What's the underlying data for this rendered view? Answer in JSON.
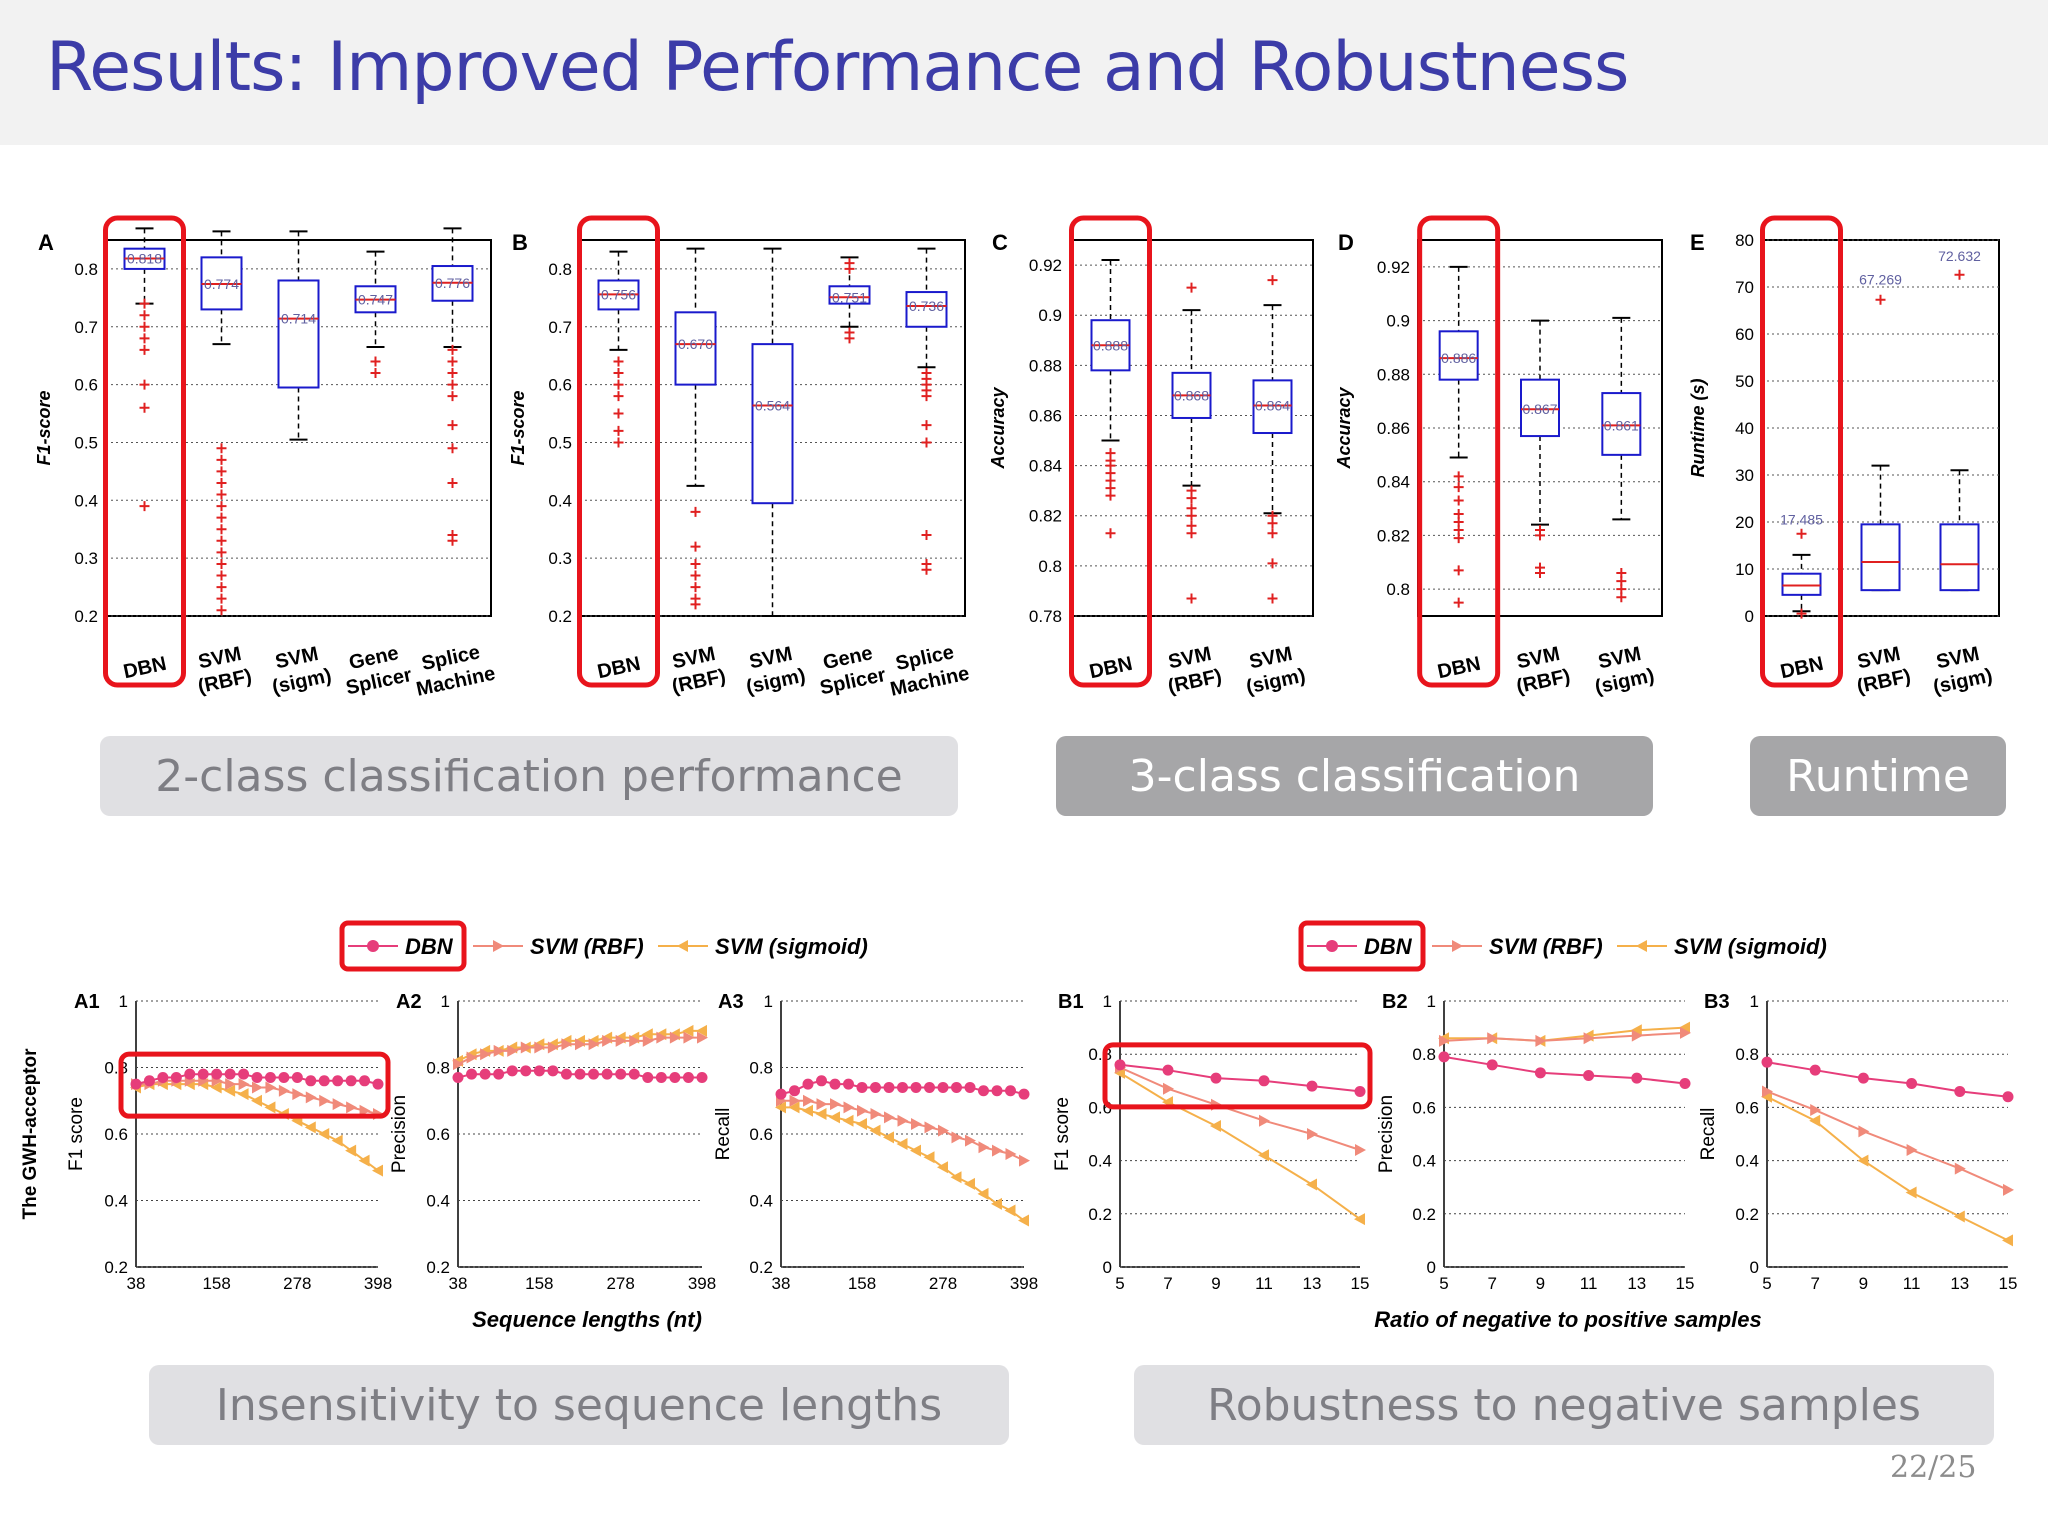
{
  "slide": {
    "title": "Results: Improved Performance and Robustness",
    "page_number": "22/25",
    "captions": {
      "two_class": "2-class classification performance",
      "three_class": "3-class classification",
      "runtime": "Runtime",
      "seq_len": "Insensitivity to sequence lengths",
      "neg_samples": "Robustness to negative samples"
    }
  },
  "colors": {
    "box": "#1a1acc",
    "outlier": "#e02020",
    "highlight": "#e8141c",
    "dbn": "#e63d7a",
    "svm_rbf": "#f08a7a",
    "svm_sigmoid": "#f5b04a"
  },
  "chart_data": [
    {
      "id": "A",
      "type": "box",
      "panel_label": "A",
      "ylabel": "F1-score",
      "ylim": [
        0.2,
        0.85
      ],
      "yticks": [
        "0.2",
        "0.3",
        "0.4",
        "0.5",
        "0.6",
        "0.7",
        "0.8"
      ],
      "categories": [
        "DBN",
        "SVM (RBF)",
        "SVM (sigm)",
        "Gene Splicer",
        "Splice Machine"
      ],
      "boxes": [
        {
          "median": 0.818,
          "q1": 0.8,
          "q3": 0.835,
          "whisker_low": 0.74,
          "whisker_high": 0.87,
          "label": "0.818",
          "outliers": [
            0.74,
            0.72,
            0.7,
            0.68,
            0.66,
            0.6,
            0.56,
            0.39
          ]
        },
        {
          "median": 0.774,
          "q1": 0.73,
          "q3": 0.82,
          "whisker_low": 0.67,
          "whisker_high": 0.865,
          "label": "0.774",
          "outliers": [
            0.49,
            0.47,
            0.45,
            0.43,
            0.41,
            0.39,
            0.37,
            0.35,
            0.33,
            0.31,
            0.29,
            0.27,
            0.25,
            0.23,
            0.21
          ]
        },
        {
          "median": 0.714,
          "q1": 0.595,
          "q3": 0.78,
          "whisker_low": 0.505,
          "whisker_high": 0.865,
          "label": "0.714",
          "outliers": []
        },
        {
          "median": 0.747,
          "q1": 0.725,
          "q3": 0.77,
          "whisker_low": 0.665,
          "whisker_high": 0.83,
          "label": "0.747",
          "outliers": [
            0.64,
            0.62
          ]
        },
        {
          "median": 0.776,
          "q1": 0.745,
          "q3": 0.805,
          "whisker_low": 0.665,
          "whisker_high": 0.87,
          "label": "0.776",
          "outliers": [
            0.66,
            0.64,
            0.62,
            0.6,
            0.58,
            0.53,
            0.49,
            0.43,
            0.34,
            0.33
          ]
        }
      ],
      "highlight": "DBN"
    },
    {
      "id": "B",
      "type": "box",
      "panel_label": "B",
      "ylabel": "F1-score",
      "ylim": [
        0.2,
        0.85
      ],
      "yticks": [
        "0.2",
        "0.3",
        "0.4",
        "0.5",
        "0.6",
        "0.7",
        "0.8"
      ],
      "categories": [
        "DBN",
        "SVM (RBF)",
        "SVM (sigm)",
        "Gene Splicer",
        "Splice Machine"
      ],
      "boxes": [
        {
          "median": 0.756,
          "q1": 0.73,
          "q3": 0.78,
          "whisker_low": 0.66,
          "whisker_high": 0.83,
          "label": "0.756",
          "outliers": [
            0.64,
            0.62,
            0.6,
            0.58,
            0.55,
            0.52,
            0.5
          ]
        },
        {
          "median": 0.67,
          "q1": 0.6,
          "q3": 0.725,
          "whisker_low": 0.425,
          "whisker_high": 0.835,
          "label": "0.670",
          "outliers": [
            0.38,
            0.32,
            0.29,
            0.27,
            0.25,
            0.23,
            0.22
          ]
        },
        {
          "median": 0.564,
          "q1": 0.395,
          "q3": 0.67,
          "whisker_low": 0.2,
          "whisker_high": 0.835,
          "label": "0.564",
          "outliers": []
        },
        {
          "median": 0.751,
          "q1": 0.74,
          "q3": 0.77,
          "whisker_low": 0.7,
          "whisker_high": 0.82,
          "label": "0.751",
          "outliers": [
            0.69,
            0.68,
            0.81,
            0.8
          ]
        },
        {
          "median": 0.736,
          "q1": 0.7,
          "q3": 0.76,
          "whisker_low": 0.63,
          "whisker_high": 0.835,
          "label": "0.736",
          "outliers": [
            0.62,
            0.61,
            0.6,
            0.59,
            0.58,
            0.53,
            0.5,
            0.34,
            0.29,
            0.28
          ]
        }
      ],
      "highlight": "DBN"
    },
    {
      "id": "C",
      "type": "box",
      "panel_label": "C",
      "ylabel": "Accuracy",
      "ylim": [
        0.78,
        0.93
      ],
      "yticks": [
        "0.78",
        "0.8",
        "0.82",
        "0.84",
        "0.86",
        "0.88",
        "0.9",
        "0.92"
      ],
      "categories": [
        "DBN",
        "SVM (RBF)",
        "SVM (sigm)"
      ],
      "boxes": [
        {
          "median": 0.888,
          "q1": 0.878,
          "q3": 0.898,
          "whisker_low": 0.85,
          "whisker_high": 0.922,
          "label": "0.888",
          "outliers": [
            0.845,
            0.842,
            0.84,
            0.837,
            0.834,
            0.831,
            0.828,
            0.813
          ]
        },
        {
          "median": 0.868,
          "q1": 0.859,
          "q3": 0.877,
          "whisker_low": 0.832,
          "whisker_high": 0.902,
          "label": "0.868",
          "outliers": [
            0.911,
            0.83,
            0.827,
            0.823,
            0.82,
            0.816,
            0.813,
            0.787
          ]
        },
        {
          "median": 0.864,
          "q1": 0.853,
          "q3": 0.874,
          "whisker_low": 0.821,
          "whisker_high": 0.904,
          "label": "0.864",
          "outliers": [
            0.914,
            0.82,
            0.817,
            0.813,
            0.801,
            0.787
          ]
        }
      ],
      "highlight": "DBN"
    },
    {
      "id": "D",
      "type": "box",
      "panel_label": "D",
      "ylabel": "Accuracy",
      "ylim": [
        0.79,
        0.93
      ],
      "yticks": [
        "0.8",
        "0.82",
        "0.84",
        "0.86",
        "0.88",
        "0.9",
        "0.92"
      ],
      "categories": [
        "DBN",
        "SVM (RBF)",
        "SVM (sigm)"
      ],
      "boxes": [
        {
          "median": 0.886,
          "q1": 0.878,
          "q3": 0.896,
          "whisker_low": 0.849,
          "whisker_high": 0.92,
          "label": "0.886",
          "outliers": [
            0.842,
            0.838,
            0.833,
            0.828,
            0.825,
            0.822,
            0.819,
            0.807,
            0.795
          ]
        },
        {
          "median": 0.867,
          "q1": 0.857,
          "q3": 0.878,
          "whisker_low": 0.824,
          "whisker_high": 0.9,
          "label": "0.867",
          "outliers": [
            0.822,
            0.82,
            0.808,
            0.806
          ]
        },
        {
          "median": 0.861,
          "q1": 0.85,
          "q3": 0.873,
          "whisker_low": 0.826,
          "whisker_high": 0.901,
          "label": "0.861",
          "outliers": [
            0.806,
            0.803,
            0.8,
            0.797
          ]
        }
      ],
      "highlight": "DBN"
    },
    {
      "id": "E",
      "type": "box",
      "panel_label": "E",
      "ylabel": "Runtime (s)",
      "ylim": [
        0,
        80
      ],
      "yticks": [
        "0",
        "10",
        "20",
        "30",
        "40",
        "50",
        "60",
        "70",
        "80"
      ],
      "categories": [
        "DBN",
        "SVM (RBF)",
        "SVM (sigm)"
      ],
      "boxes": [
        {
          "median": 6.5,
          "q1": 4.5,
          "q3": 9,
          "whisker_low": 1,
          "whisker_high": 13,
          "label": "17.485",
          "label_value": 19.5,
          "outliers": [
            17.5,
            0.5
          ]
        },
        {
          "median": 11.5,
          "q1": 5.5,
          "q3": 19.5,
          "whisker_low": 5.5,
          "whisker_high": 32,
          "label": "67.269",
          "label_value": 70.5,
          "outliers": [
            67.3
          ]
        },
        {
          "median": 11,
          "q1": 5.5,
          "q3": 19.5,
          "whisker_low": 5.5,
          "whisker_high": 31,
          "label": "72.632",
          "label_value": 75.5,
          "outliers": [
            72.6
          ]
        }
      ],
      "highlight": "DBN"
    },
    {
      "id": "A1",
      "type": "line",
      "panel_label": "A1",
      "ylabel": "F1 score",
      "outer_ylabel": "The GWH-acceptor",
      "ylim": [
        0.2,
        1
      ],
      "yticks": [
        "0.2",
        "0.4",
        "0.6",
        "0.8",
        "1"
      ],
      "x": [
        38,
        58,
        78,
        98,
        118,
        138,
        158,
        178,
        198,
        218,
        238,
        258,
        278,
        298,
        318,
        338,
        358,
        378,
        398
      ],
      "xticks": [
        "38",
        "158",
        "278",
        "398"
      ],
      "series": [
        {
          "name": "DBN",
          "values": [
            0.75,
            0.76,
            0.77,
            0.77,
            0.78,
            0.78,
            0.78,
            0.78,
            0.78,
            0.77,
            0.77,
            0.77,
            0.77,
            0.76,
            0.76,
            0.76,
            0.76,
            0.76,
            0.75
          ]
        },
        {
          "name": "SVM (RBF)",
          "values": [
            0.75,
            0.75,
            0.76,
            0.76,
            0.76,
            0.76,
            0.76,
            0.75,
            0.75,
            0.74,
            0.74,
            0.73,
            0.72,
            0.71,
            0.7,
            0.69,
            0.68,
            0.67,
            0.66
          ]
        },
        {
          "name": "SVM (sigmoid)",
          "values": [
            0.74,
            0.75,
            0.75,
            0.75,
            0.75,
            0.75,
            0.74,
            0.73,
            0.72,
            0.7,
            0.68,
            0.66,
            0.64,
            0.62,
            0.6,
            0.58,
            0.55,
            0.52,
            0.49
          ]
        }
      ],
      "highlight_box": true
    },
    {
      "id": "A2",
      "type": "line",
      "panel_label": "A2",
      "ylabel": "Precision",
      "ylim": [
        0.2,
        1
      ],
      "yticks": [
        "0.2",
        "0.4",
        "0.6",
        "0.8",
        "1"
      ],
      "x": [
        38,
        58,
        78,
        98,
        118,
        138,
        158,
        178,
        198,
        218,
        238,
        258,
        278,
        298,
        318,
        338,
        358,
        378,
        398
      ],
      "xticks": [
        "38",
        "158",
        "278",
        "398"
      ],
      "series": [
        {
          "name": "DBN",
          "values": [
            0.77,
            0.78,
            0.78,
            0.78,
            0.79,
            0.79,
            0.79,
            0.79,
            0.78,
            0.78,
            0.78,
            0.78,
            0.78,
            0.78,
            0.77,
            0.77,
            0.77,
            0.77,
            0.77
          ]
        },
        {
          "name": "SVM (RBF)",
          "values": [
            0.81,
            0.83,
            0.84,
            0.85,
            0.85,
            0.86,
            0.86,
            0.86,
            0.87,
            0.87,
            0.87,
            0.88,
            0.88,
            0.88,
            0.88,
            0.89,
            0.89,
            0.89,
            0.89
          ]
        },
        {
          "name": "SVM (sigmoid)",
          "values": [
            0.82,
            0.84,
            0.85,
            0.85,
            0.86,
            0.86,
            0.87,
            0.87,
            0.88,
            0.88,
            0.88,
            0.89,
            0.89,
            0.89,
            0.9,
            0.9,
            0.9,
            0.91,
            0.91
          ]
        }
      ]
    },
    {
      "id": "A3",
      "type": "line",
      "panel_label": "A3",
      "ylabel": "Recall",
      "ylim": [
        0.2,
        1
      ],
      "yticks": [
        "0.2",
        "0.4",
        "0.6",
        "0.8",
        "1"
      ],
      "x": [
        38,
        58,
        78,
        98,
        118,
        138,
        158,
        178,
        198,
        218,
        238,
        258,
        278,
        298,
        318,
        338,
        358,
        378,
        398
      ],
      "xticks": [
        "38",
        "158",
        "278",
        "398"
      ],
      "series": [
        {
          "name": "DBN",
          "values": [
            0.72,
            0.73,
            0.75,
            0.76,
            0.75,
            0.75,
            0.74,
            0.74,
            0.74,
            0.74,
            0.74,
            0.74,
            0.74,
            0.74,
            0.74,
            0.73,
            0.73,
            0.73,
            0.72
          ]
        },
        {
          "name": "SVM (RBF)",
          "values": [
            0.7,
            0.7,
            0.7,
            0.69,
            0.69,
            0.68,
            0.67,
            0.66,
            0.65,
            0.64,
            0.63,
            0.62,
            0.61,
            0.59,
            0.58,
            0.56,
            0.55,
            0.54,
            0.52
          ]
        },
        {
          "name": "SVM (sigmoid)",
          "values": [
            0.68,
            0.68,
            0.67,
            0.66,
            0.65,
            0.64,
            0.63,
            0.61,
            0.59,
            0.57,
            0.55,
            0.53,
            0.5,
            0.47,
            0.45,
            0.42,
            0.39,
            0.37,
            0.34
          ]
        }
      ]
    },
    {
      "id": "B1",
      "type": "line",
      "panel_label": "B1",
      "ylabel": "F1 score",
      "ylim": [
        0,
        1
      ],
      "yticks": [
        "0",
        "0.2",
        "0.4",
        "0.6",
        "0.8",
        "1"
      ],
      "x": [
        5,
        7,
        9,
        11,
        13,
        15
      ],
      "xticks": [
        "5",
        "7",
        "9",
        "11",
        "13",
        "15"
      ],
      "series": [
        {
          "name": "DBN",
          "values": [
            0.76,
            0.74,
            0.71,
            0.7,
            0.68,
            0.66
          ]
        },
        {
          "name": "SVM (RBF)",
          "values": [
            0.75,
            0.67,
            0.61,
            0.55,
            0.5,
            0.44
          ]
        },
        {
          "name": "SVM (sigmoid)",
          "values": [
            0.73,
            0.62,
            0.53,
            0.42,
            0.31,
            0.18
          ]
        }
      ],
      "highlight_box": true
    },
    {
      "id": "B2",
      "type": "line",
      "panel_label": "B2",
      "ylabel": "Precision",
      "ylim": [
        0,
        1
      ],
      "yticks": [
        "0",
        "0.2",
        "0.4",
        "0.6",
        "0.8",
        "1"
      ],
      "x": [
        5,
        7,
        9,
        11,
        13,
        15
      ],
      "xticks": [
        "5",
        "7",
        "9",
        "11",
        "13",
        "15"
      ],
      "series": [
        {
          "name": "DBN",
          "values": [
            0.79,
            0.76,
            0.73,
            0.72,
            0.71,
            0.69
          ]
        },
        {
          "name": "SVM (RBF)",
          "values": [
            0.85,
            0.86,
            0.85,
            0.86,
            0.87,
            0.88
          ]
        },
        {
          "name": "SVM (sigmoid)",
          "values": [
            0.86,
            0.86,
            0.85,
            0.87,
            0.89,
            0.9
          ]
        }
      ]
    },
    {
      "id": "B3",
      "type": "line",
      "panel_label": "B3",
      "ylabel": "Recall",
      "ylim": [
        0,
        1
      ],
      "yticks": [
        "0",
        "0.2",
        "0.4",
        "0.6",
        "0.8",
        "1"
      ],
      "x": [
        5,
        7,
        9,
        11,
        13,
        15
      ],
      "xticks": [
        "5",
        "7",
        "9",
        "11",
        "13",
        "15"
      ],
      "series": [
        {
          "name": "DBN",
          "values": [
            0.77,
            0.74,
            0.71,
            0.69,
            0.66,
            0.64
          ]
        },
        {
          "name": "SVM (RBF)",
          "values": [
            0.66,
            0.59,
            0.51,
            0.44,
            0.37,
            0.29
          ]
        },
        {
          "name": "SVM (sigmoid)",
          "values": [
            0.64,
            0.55,
            0.4,
            0.28,
            0.19,
            0.1
          ]
        }
      ]
    }
  ],
  "legend": {
    "entries": [
      "DBN",
      "SVM (RBF)",
      "SVM (sigmoid)"
    ],
    "highlight": "DBN"
  },
  "xlabels": {
    "seq": "Sequence lengths (nt)",
    "neg": "Ratio of negative to positive samples"
  }
}
